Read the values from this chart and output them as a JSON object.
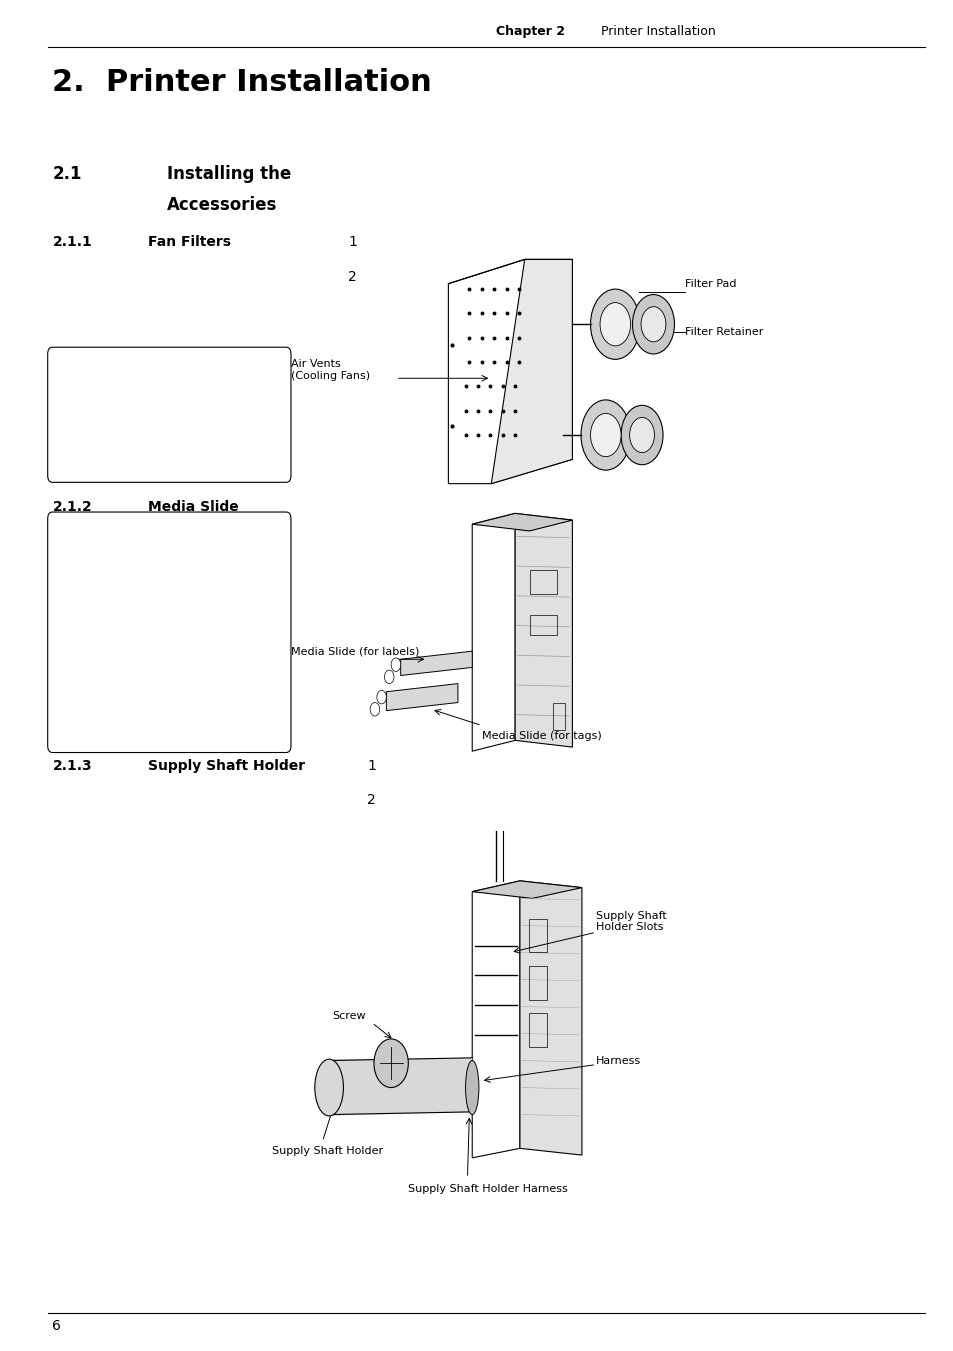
{
  "bg_color": "#ffffff",
  "header_chapter": "Chapter 2",
  "header_title": "Printer Installation",
  "main_title": "2.  Printer Installation",
  "section_21_label": "2.1",
  "section_21_title_line1": "Installing the",
  "section_21_title_line2": "Accessories",
  "section_211_label": "2.1.1",
  "section_211_title": "Fan Filters",
  "section_211_num1": "1",
  "section_211_num2": "2",
  "section_212_label": "2.1.2",
  "section_212_title": "Media Slide",
  "section_213_label": "2.1.3",
  "section_213_title": "Supply Shaft Holder",
  "section_213_num1": "1",
  "section_213_num2": "2",
  "footer_page": "6",
  "label_filter_pad": "Filter Pad",
  "label_filter_retainer": "Filter Retainer",
  "label_air_vents": "Air Vents\n(Cooling Fans)",
  "label_media_slide_labels": "Media Slide (for labels)",
  "label_media_slide_tags": "Media Slide (for tags)",
  "label_screw": "Screw",
  "label_supply_shaft_holder": "Supply Shaft Holder",
  "label_supply_shaft_holder_slots": "Supply Shaft\nHolder Slots",
  "label_harness": "Harness",
  "label_supply_shaft_holder_harness": "Supply Shaft Holder Harness"
}
